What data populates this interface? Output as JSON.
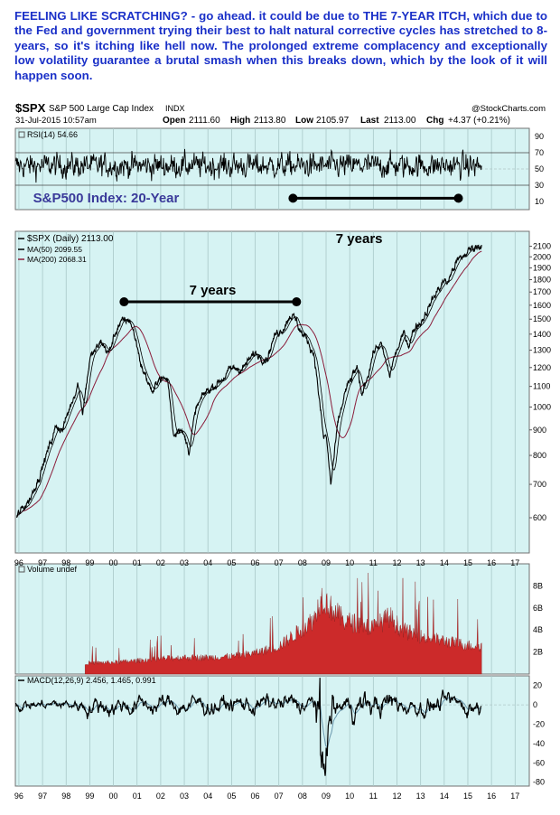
{
  "headline": "FEELING LIKE SCRATCHING? - go ahead. it could be due to THE 7-YEAR ITCH, which due to the Fed and government trying their best to halt natural corrective cycles has stretched to 8-years, so it's itching like hell now. The prolonged extreme complacency and exceptionally low volatility guarantee a brutal smash when this breaks down, which by the look of it will happen soon.",
  "header": {
    "symbol": "$SPX",
    "name": "S&P 500 Large Cap Index",
    "exchange": "INDX",
    "source": "@StockCharts.com",
    "datetime": "31-Jul-2015 10:57am",
    "open_label": "Open",
    "open": "2111.60",
    "high_label": "High",
    "high": "2113.80",
    "low_label": "Low",
    "low": "2105.97",
    "last_label": "Last",
    "last": "2113.00",
    "chg_label": "Chg",
    "chg": "+4.37 (+0.21%)"
  },
  "colors": {
    "panel_bg": "#d6f3f3",
    "grid": "#a9c8c8",
    "price": "#000000",
    "ma50": "#000000",
    "ma200": "#8a1c3a",
    "rsi": "#000000",
    "volume": "#cc2a2a",
    "macd": "#000000",
    "signal": "#6a98ae",
    "annotation_text": "#3a3a9a"
  },
  "chart_data": [
    {
      "id": "rsi",
      "type": "line",
      "legend": "RSI(14) 54.66",
      "ylim": [
        0,
        100
      ],
      "yticks": [
        90,
        70,
        50,
        30,
        10
      ],
      "reference_lines": [
        70,
        50,
        30
      ],
      "x_range": [
        1995.85,
        2017.6
      ],
      "series_end_x": 2015.58,
      "last_value": 54.66
    },
    {
      "id": "price",
      "type": "line",
      "scale": "log",
      "ylim": [
        510,
        2250
      ],
      "yticks": [
        600,
        700,
        800,
        900,
        1000,
        1100,
        1200,
        1300,
        1400,
        1500,
        1600,
        1700,
        1800,
        1900,
        2000,
        2100
      ],
      "legend": [
        {
          "name": "$SPX (Daily) 2113.00",
          "key": "price"
        },
        {
          "name": "MA(50) 2099.55",
          "key": "ma50"
        },
        {
          "name": "MA(200) 2068.31",
          "key": "ma200"
        }
      ],
      "x": [
        1995.9,
        1996.5,
        1997.0,
        1997.6,
        1997.85,
        1998.5,
        1998.7,
        1999.0,
        1999.5,
        1999.8,
        2000.2,
        2000.7,
        2001.0,
        2001.2,
        2001.7,
        2001.9,
        2002.3,
        2002.55,
        2002.8,
        2003.2,
        2003.5,
        2003.9,
        2004.5,
        2005.0,
        2005.5,
        2006.0,
        2006.5,
        2006.8,
        2007.0,
        2007.2,
        2007.5,
        2007.75,
        2008.0,
        2008.2,
        2008.5,
        2008.8,
        2008.9,
        2009.0,
        2009.2,
        2009.5,
        2009.8,
        2010.3,
        2010.5,
        2010.8,
        2011.0,
        2011.3,
        2011.7,
        2011.8,
        2012.0,
        2012.3,
        2012.5,
        2012.8,
        2013.0,
        2013.5,
        2014.0,
        2014.1,
        2014.5,
        2014.8,
        2015.0,
        2015.3,
        2015.58
      ],
      "y": [
        600,
        660,
        760,
        920,
        900,
        1120,
        980,
        1250,
        1350,
        1280,
        1460,
        1500,
        1330,
        1200,
        1060,
        1150,
        1130,
        880,
        920,
        820,
        990,
        1070,
        1130,
        1190,
        1200,
        1280,
        1260,
        1380,
        1420,
        1450,
        1540,
        1480,
        1400,
        1360,
        1280,
        950,
        860,
        880,
        700,
        920,
        1070,
        1200,
        1050,
        1180,
        1290,
        1340,
        1150,
        1220,
        1300,
        1400,
        1340,
        1460,
        1480,
        1640,
        1800,
        1760,
        1950,
        2000,
        2050,
        2100,
        2113
      ],
      "annotations": [
        {
          "text": "S&P500 Index: 20-Year",
          "x": 1996.6,
          "y": 9
        },
        {
          "text": "7 years",
          "x": 2004.2,
          "y": 1680,
          "bar": [
            2000.45,
            2007.75
          ],
          "bar_y": 1625
        },
        {
          "text": "7 years",
          "x": 2010.4,
          "y": 2130,
          "bar": [
            2007.6,
            2014.6
          ],
          "bar_y": 14
        }
      ]
    },
    {
      "id": "volume",
      "type": "area",
      "legend": "Volume undef",
      "ylim": [
        0,
        10
      ],
      "yticks": [
        2,
        4,
        6,
        8
      ],
      "ytick_labels": [
        "2B",
        "4B",
        "6B",
        "8B"
      ],
      "x": [
        1998.8,
        2000.0,
        2001.0,
        2002.0,
        2003.0,
        2004.0,
        2005.0,
        2006.0,
        2007.0,
        2007.8,
        2008.5,
        2008.8,
        2009.2,
        2009.8,
        2010.5,
        2011.0,
        2011.7,
        2012.2,
        2013.0,
        2014.0,
        2015.0,
        2015.58
      ],
      "y": [
        1.0,
        1.05,
        1.2,
        1.4,
        1.5,
        1.5,
        1.6,
        1.9,
        2.5,
        3.8,
        5.0,
        7.0,
        6.0,
        4.8,
        4.5,
        4.2,
        5.2,
        4.0,
        3.4,
        3.0,
        2.6,
        2.5
      ]
    },
    {
      "id": "macd",
      "type": "line",
      "legend": "MACD(12,26,9) 2.456, 1.465, 0.991",
      "ylim": [
        -84,
        30
      ],
      "yticks": [
        20,
        0,
        -20,
        -40,
        -60,
        -80
      ],
      "x_range": [
        1995.85,
        2017.6
      ],
      "series_end_x": 2015.58
    }
  ],
  "x_axis": {
    "ticks": [
      1996,
      1997,
      1998,
      1999,
      2000,
      2001,
      2002,
      2003,
      2004,
      2005,
      2006,
      2007,
      2008,
      2009,
      2010,
      2011,
      2012,
      2013,
      2014,
      2015,
      2016,
      2017
    ],
    "labels": [
      "96",
      "97",
      "98",
      "99",
      "00",
      "01",
      "02",
      "03",
      "04",
      "05",
      "06",
      "07",
      "08",
      "09",
      "10",
      "11",
      "12",
      "13",
      "14",
      "15",
      "16",
      "17"
    ]
  }
}
